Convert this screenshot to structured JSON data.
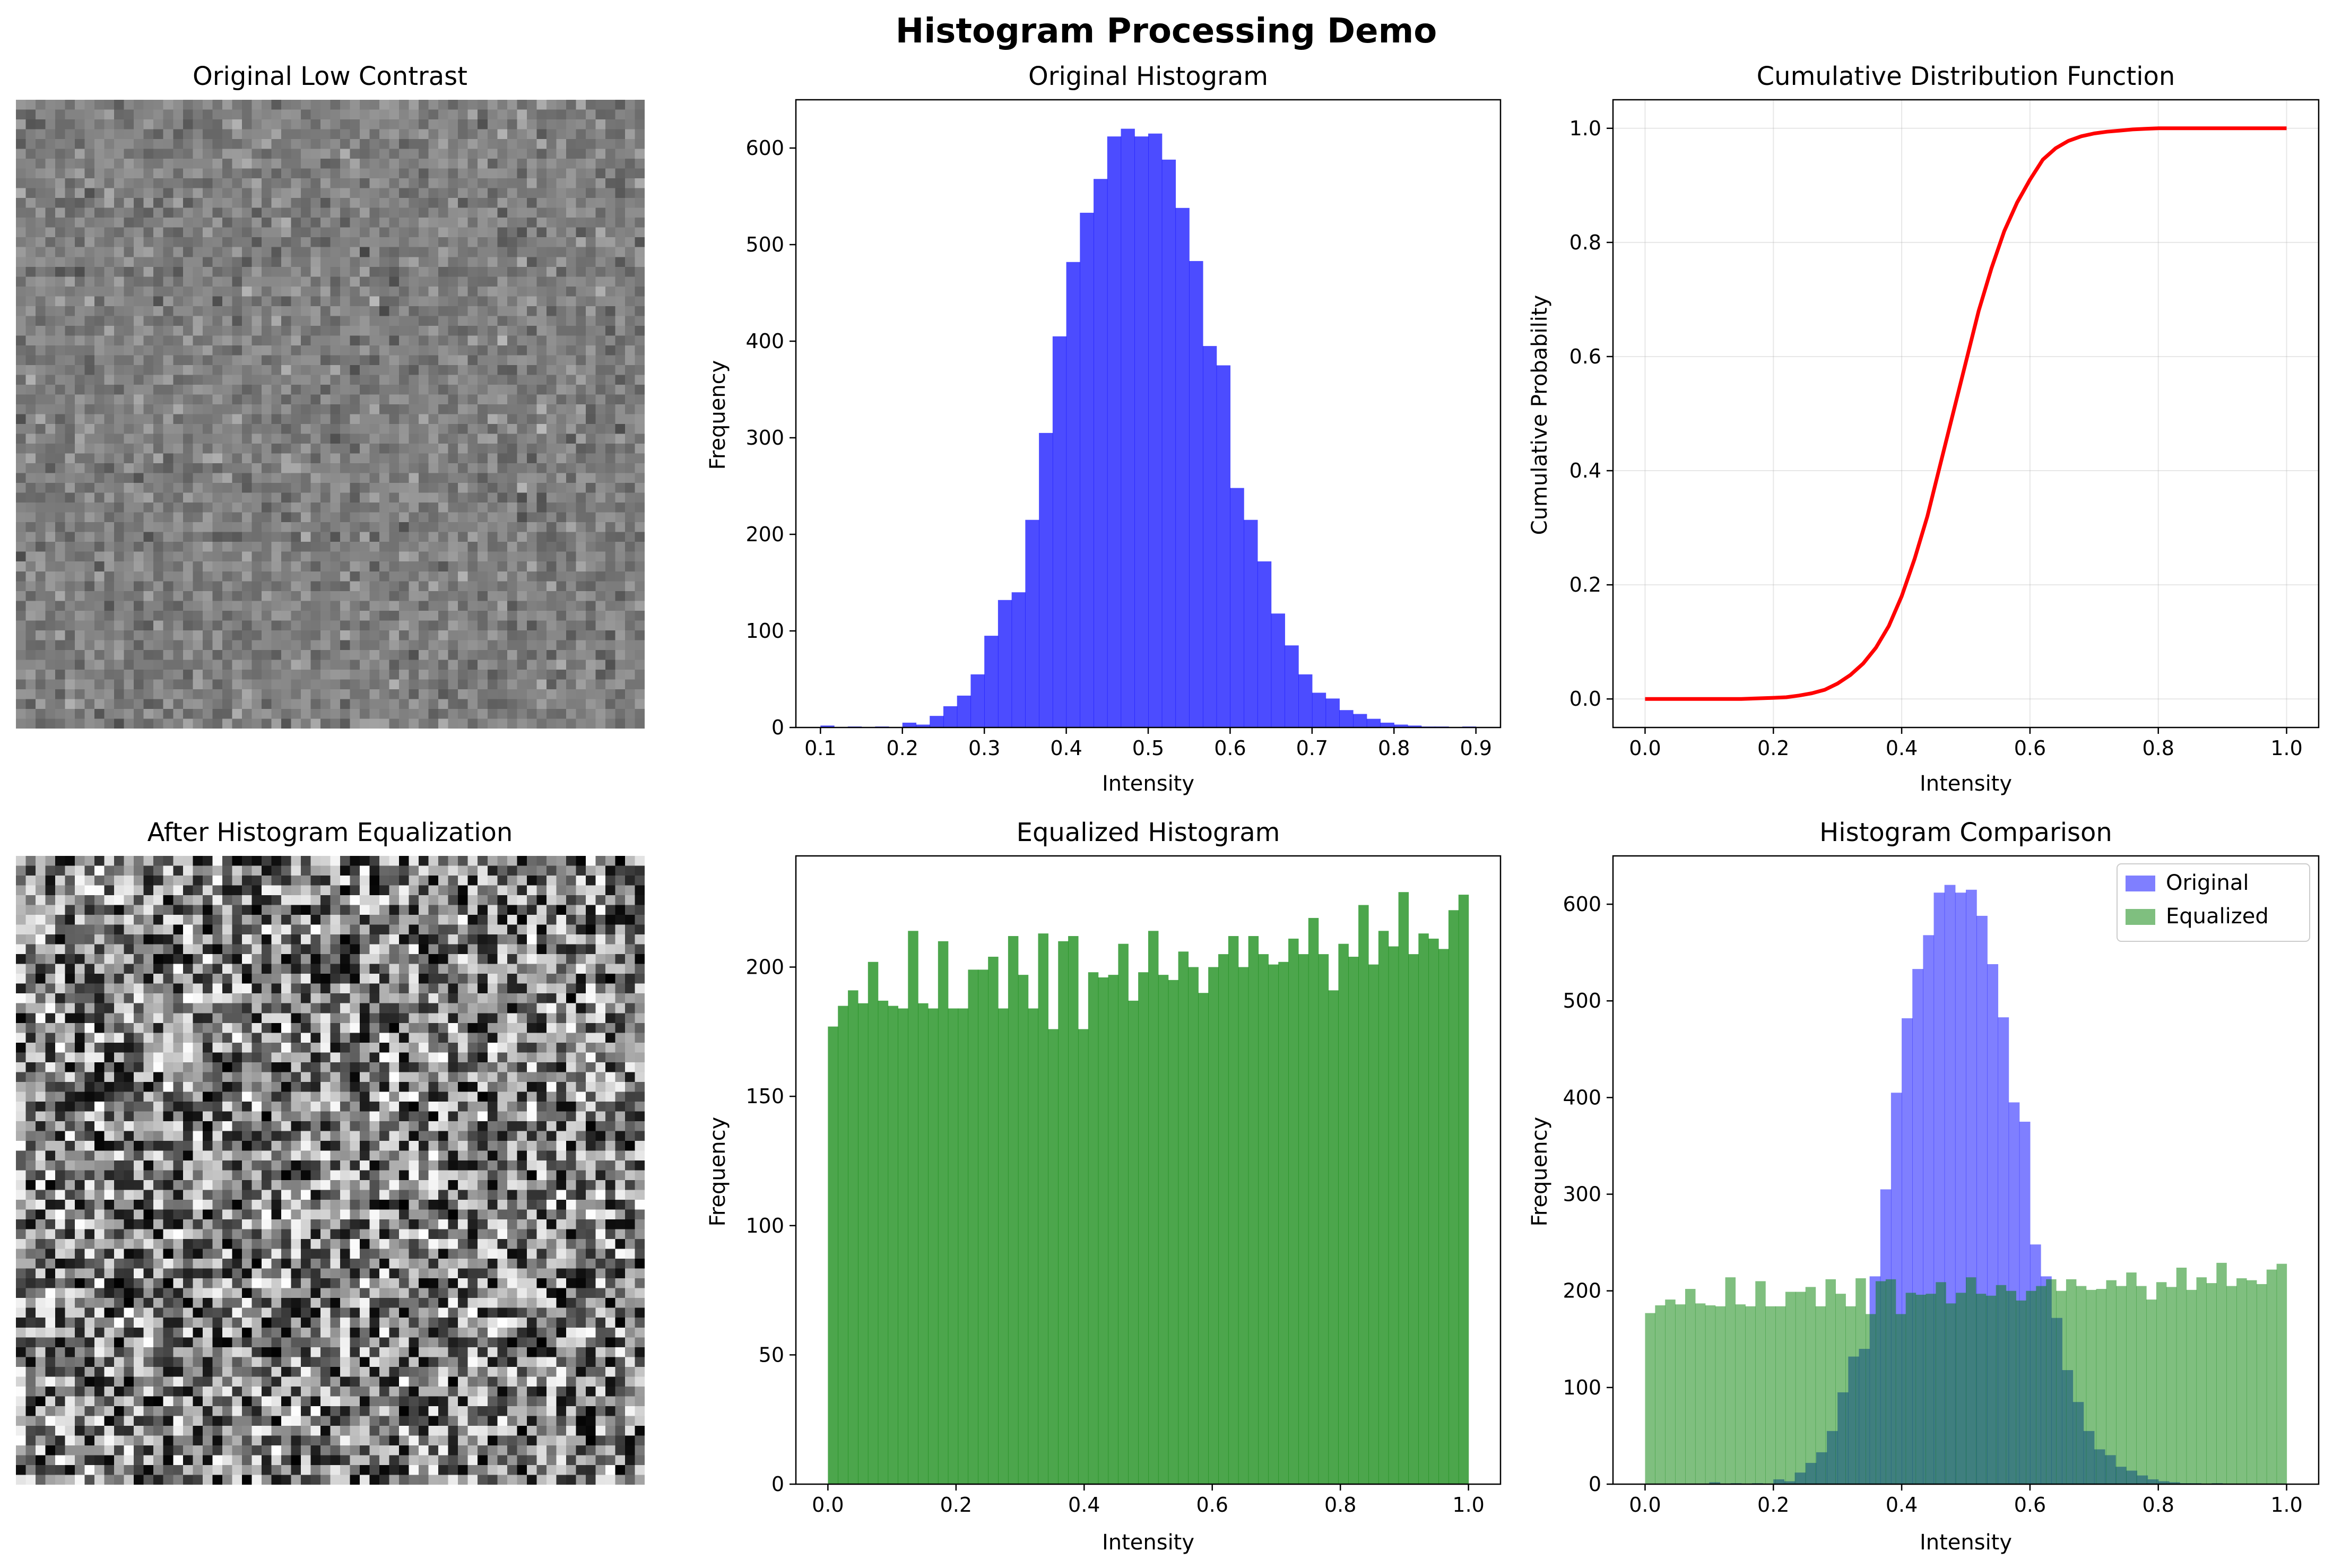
{
  "figure_title": "Histogram Processing Demo",
  "chart_data": [
    {
      "type": "image",
      "title": "Original Low Contrast",
      "grid_size": 64,
      "intensity_range": [
        0.15,
        0.85
      ]
    },
    {
      "type": "bar",
      "title": "Original Histogram",
      "xlabel": "Intensity",
      "ylabel": "Frequency",
      "xlim": [
        0.07,
        0.93
      ],
      "ylim": [
        0,
        650
      ],
      "xticks": [
        "0.1",
        "0.2",
        "0.3",
        "0.4",
        "0.5",
        "0.6",
        "0.7",
        "0.8",
        "0.9"
      ],
      "yticks": [
        "0",
        "100",
        "200",
        "300",
        "400",
        "500",
        "600"
      ],
      "bin_range": [
        0.1,
        0.9
      ],
      "values": [
        2,
        0,
        1,
        0,
        1,
        0,
        5,
        3,
        12,
        22,
        33,
        55,
        95,
        132,
        140,
        215,
        305,
        405,
        482,
        533,
        568,
        612,
        620,
        612,
        615,
        588,
        538,
        483,
        395,
        375,
        248,
        215,
        172,
        118,
        85,
        55,
        36,
        30,
        18,
        14,
        9,
        5,
        3,
        2,
        1,
        1,
        0,
        1
      ],
      "color": "#0000ff"
    },
    {
      "type": "line",
      "title": "Cumulative Distribution Function",
      "xlabel": "Intensity",
      "ylabel": "Cumulative Probability",
      "xlim": [
        -0.05,
        1.05
      ],
      "ylim": [
        -0.05,
        1.05
      ],
      "xticks": [
        "0.0",
        "0.2",
        "0.4",
        "0.6",
        "0.8",
        "1.0"
      ],
      "yticks": [
        "0.0",
        "0.2",
        "0.4",
        "0.6",
        "0.8",
        "1.0"
      ],
      "grid": true,
      "x": [
        0,
        0.05,
        0.1,
        0.15,
        0.2,
        0.22,
        0.24,
        0.26,
        0.28,
        0.3,
        0.32,
        0.34,
        0.36,
        0.38,
        0.4,
        0.42,
        0.44,
        0.46,
        0.48,
        0.5,
        0.52,
        0.54,
        0.56,
        0.58,
        0.6,
        0.62,
        0.64,
        0.66,
        0.68,
        0.7,
        0.72,
        0.74,
        0.76,
        0.78,
        0.8,
        0.85,
        0.9,
        1.0
      ],
      "y": [
        0,
        0,
        0,
        0,
        0.002,
        0.003,
        0.006,
        0.01,
        0.016,
        0.027,
        0.042,
        0.062,
        0.09,
        0.128,
        0.18,
        0.245,
        0.32,
        0.41,
        0.5,
        0.59,
        0.68,
        0.755,
        0.82,
        0.87,
        0.91,
        0.945,
        0.965,
        0.978,
        0.986,
        0.991,
        0.994,
        0.996,
        0.998,
        0.999,
        1,
        1,
        1,
        1
      ],
      "color": "#ff0000"
    },
    {
      "type": "image",
      "title": "After Histogram Equalization",
      "grid_size": 64,
      "intensity_range": [
        0,
        1
      ]
    },
    {
      "type": "bar",
      "title": "Equalized Histogram",
      "xlabel": "Intensity",
      "ylabel": "Frequency",
      "xlim": [
        -0.05,
        1.05
      ],
      "ylim": [
        0,
        243
      ],
      "xticks": [
        "0.0",
        "0.2",
        "0.4",
        "0.6",
        "0.8",
        "1.0"
      ],
      "yticks": [
        "0",
        "50",
        "100",
        "150",
        "200"
      ],
      "bin_range": [
        0,
        1
      ],
      "values": [
        177,
        185,
        191,
        186,
        202,
        187,
        185,
        184,
        214,
        186,
        184,
        210,
        184,
        184,
        199,
        199,
        204,
        184,
        212,
        197,
        184,
        213,
        176,
        210,
        212,
        176,
        198,
        196,
        197,
        209,
        187,
        198,
        214,
        197,
        195,
        206,
        200,
        190,
        200,
        205,
        212,
        200,
        212,
        205,
        201,
        202,
        211,
        205,
        219,
        205,
        191,
        209,
        204,
        224,
        201,
        214,
        208,
        229,
        205,
        213,
        211,
        207,
        222,
        228
      ],
      "color": "#008000"
    },
    {
      "type": "bar",
      "title": "Histogram Comparison",
      "xlabel": "Intensity",
      "ylabel": "Frequency",
      "xlim": [
        -0.05,
        1.05
      ],
      "ylim": [
        0,
        650
      ],
      "xticks": [
        "0.0",
        "0.2",
        "0.4",
        "0.6",
        "0.8",
        "1.0"
      ],
      "yticks": [
        "0",
        "100",
        "200",
        "300",
        "400",
        "500",
        "600"
      ],
      "legend": "top-right",
      "series": [
        {
          "name": "Original",
          "bin_range": [
            0.1,
            0.9
          ],
          "values": [
            2,
            0,
            1,
            0,
            1,
            0,
            5,
            3,
            12,
            22,
            33,
            55,
            95,
            132,
            140,
            215,
            305,
            405,
            482,
            533,
            568,
            612,
            620,
            612,
            615,
            588,
            538,
            483,
            395,
            375,
            248,
            215,
            172,
            118,
            85,
            55,
            36,
            30,
            18,
            14,
            9,
            5,
            3,
            2,
            1,
            1,
            0,
            1
          ],
          "color": "#0000ff",
          "alpha": 0.5
        },
        {
          "name": "Equalized",
          "bin_range": [
            0,
            1
          ],
          "values": [
            177,
            185,
            191,
            186,
            202,
            187,
            185,
            184,
            214,
            186,
            184,
            210,
            184,
            184,
            199,
            199,
            204,
            184,
            212,
            197,
            184,
            213,
            176,
            210,
            212,
            176,
            198,
            196,
            197,
            209,
            187,
            198,
            214,
            197,
            195,
            206,
            200,
            190,
            200,
            205,
            212,
            200,
            212,
            205,
            201,
            202,
            211,
            205,
            219,
            205,
            191,
            209,
            204,
            224,
            201,
            214,
            208,
            229,
            205,
            213,
            211,
            207,
            222,
            228
          ],
          "color": "#008000",
          "alpha": 0.5
        }
      ]
    }
  ]
}
